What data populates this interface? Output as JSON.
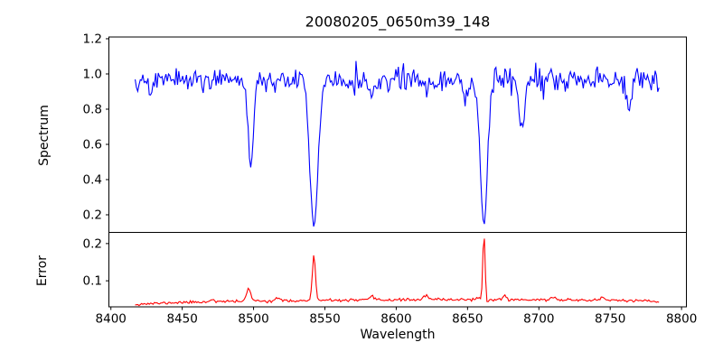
{
  "figure": {
    "background": "#ffffff",
    "axis_color": "#000000",
    "text_color": "#000000"
  },
  "chart_data": [
    {
      "type": "line",
      "name": "spectrum-panel",
      "title": "20080205_0650m39_148",
      "ylabel": "Spectrum",
      "line_color": "#0000ff",
      "grid": false,
      "legend": null,
      "x_range": [
        8417,
        8785
      ],
      "sample_step": 0.9,
      "xlim": [
        8398.6,
        8803.4
      ],
      "ylim": [
        0.1,
        1.21
      ],
      "yticks": [
        0.2,
        0.4,
        0.6,
        0.8,
        1.0,
        1.2
      ],
      "ytick_labels": [
        "0.2",
        "0.4",
        "0.6",
        "0.8",
        "1.0",
        "1.2"
      ],
      "continuum": 0.965,
      "noise_sigma": 0.034,
      "noise_scales_with_flux": true,
      "noise_seed": 5,
      "absorption_lines": [
        {
          "center": 8498.0,
          "depth": 0.48,
          "sigma": 1.8
        },
        {
          "center": 8542.3,
          "depth": 0.83,
          "sigma": 2.8
        },
        {
          "center": 8661.5,
          "depth": 0.82,
          "sigma": 2.4
        },
        {
          "center": 8688.0,
          "depth": 0.27,
          "sigma": 1.8
        },
        {
          "center": 8648.0,
          "depth": 0.15,
          "sigma": 1.4
        },
        {
          "center": 8428.0,
          "depth": 0.12,
          "sigma": 1.4
        },
        {
          "center": 8583.0,
          "depth": 0.11,
          "sigma": 1.4
        },
        {
          "center": 8763.0,
          "depth": 0.13,
          "sigma": 1.4
        }
      ]
    },
    {
      "type": "line",
      "name": "error-panel",
      "ylabel": "Error",
      "xlabel": "Wavelength",
      "line_color": "#ff0000",
      "grid": false,
      "legend": null,
      "x_range": [
        8417,
        8785
      ],
      "sample_step": 0.9,
      "xlim": [
        8398.6,
        8803.4
      ],
      "ylim": [
        0.03,
        0.23
      ],
      "xticks": [
        8400,
        8450,
        8500,
        8550,
        8600,
        8650,
        8700,
        8750,
        8800
      ],
      "xtick_labels": [
        "8400",
        "8450",
        "8500",
        "8550",
        "8600",
        "8650",
        "8700",
        "8750",
        "8800"
      ],
      "yticks": [
        0.1,
        0.2
      ],
      "ytick_labels": [
        "0.1",
        "0.2"
      ],
      "noise_sigma": 0.0018,
      "noise_seed": 11,
      "baseline_anchors": [
        [
          8417,
          0.037
        ],
        [
          8450,
          0.042
        ],
        [
          8500,
          0.0455
        ],
        [
          8550,
          0.047
        ],
        [
          8600,
          0.049
        ],
        [
          8650,
          0.05
        ],
        [
          8700,
          0.049
        ],
        [
          8750,
          0.048
        ],
        [
          8770,
          0.046
        ],
        [
          8785,
          0.043
        ]
      ],
      "spikes": [
        {
          "center": 8496.5,
          "amp": 0.031,
          "sigma": 1.6
        },
        {
          "center": 8542.3,
          "amp": 0.12,
          "sigma": 1.1
        },
        {
          "center": 8661.5,
          "amp": 0.18,
          "sigma": 0.8
        },
        {
          "center": 8663.8,
          "amp": -0.011,
          "sigma": 0.9
        },
        {
          "center": 8471.0,
          "amp": 0.007,
          "sigma": 1.5
        },
        {
          "center": 8516.5,
          "amp": 0.009,
          "sigma": 1.3
        },
        {
          "center": 8583.0,
          "amp": 0.009,
          "sigma": 1.4
        },
        {
          "center": 8621.0,
          "amp": 0.011,
          "sigma": 1.5
        },
        {
          "center": 8676.0,
          "amp": 0.011,
          "sigma": 1.2
        },
        {
          "center": 8710.0,
          "amp": 0.008,
          "sigma": 1.4
        },
        {
          "center": 8745.0,
          "amp": 0.007,
          "sigma": 1.4
        }
      ]
    }
  ]
}
